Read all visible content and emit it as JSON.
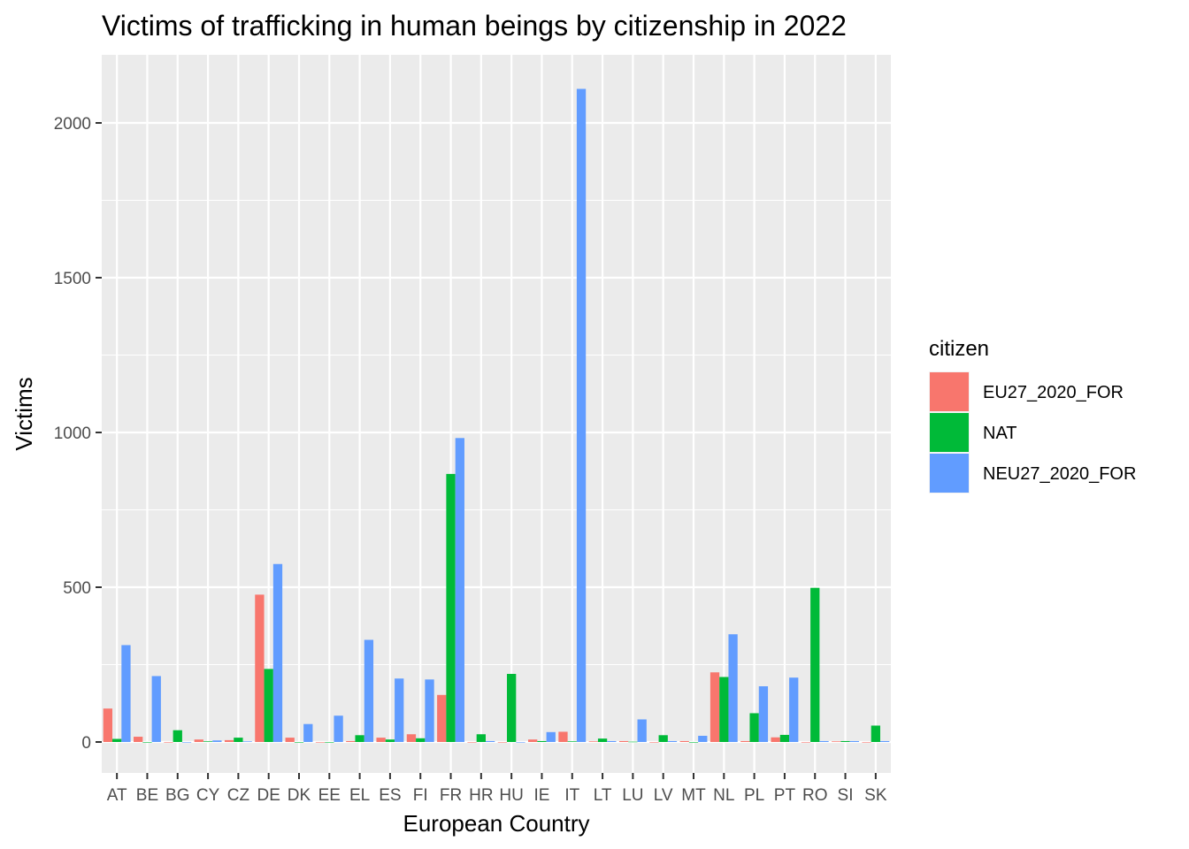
{
  "chart_data": {
    "type": "bar",
    "title": "Victims of trafficking in human beings by citizenship in 2022",
    "xlabel": "European Country",
    "ylabel": "Victims",
    "ylim": [
      -100,
      2220
    ],
    "yticks": [
      0,
      500,
      1000,
      1500,
      2000
    ],
    "grid": true,
    "legend_title": "citizen",
    "legend_position": "right",
    "categories": [
      "AT",
      "BE",
      "BG",
      "CY",
      "CZ",
      "DE",
      "DK",
      "EE",
      "EL",
      "ES",
      "FI",
      "FR",
      "HR",
      "HU",
      "IE",
      "IT",
      "LT",
      "LU",
      "LV",
      "MT",
      "NL",
      "PL",
      "PT",
      "RO",
      "SI",
      "SK"
    ],
    "series": [
      {
        "name": "EU27_2020_FOR",
        "color": "#F8766D",
        "values": [
          108,
          17,
          0,
          8,
          6,
          476,
          14,
          0,
          3,
          14,
          25,
          152,
          0,
          0,
          8,
          33,
          2,
          3,
          0,
          3,
          225,
          3,
          15,
          0,
          2,
          0
        ]
      },
      {
        "name": "NAT",
        "color": "#00BA38",
        "values": [
          10,
          0,
          38,
          2,
          14,
          236,
          0,
          0,
          22,
          8,
          12,
          866,
          25,
          220,
          3,
          2,
          11,
          1,
          22,
          0,
          210,
          93,
          23,
          498,
          3,
          53
        ]
      },
      {
        "name": "NEU27_2020_FOR",
        "color": "#619CFF",
        "values": [
          313,
          213,
          0,
          5,
          2,
          575,
          58,
          85,
          330,
          205,
          202,
          982,
          3,
          0,
          32,
          2110,
          3,
          73,
          3,
          20,
          348,
          180,
          208,
          3,
          3,
          3
        ]
      }
    ]
  }
}
